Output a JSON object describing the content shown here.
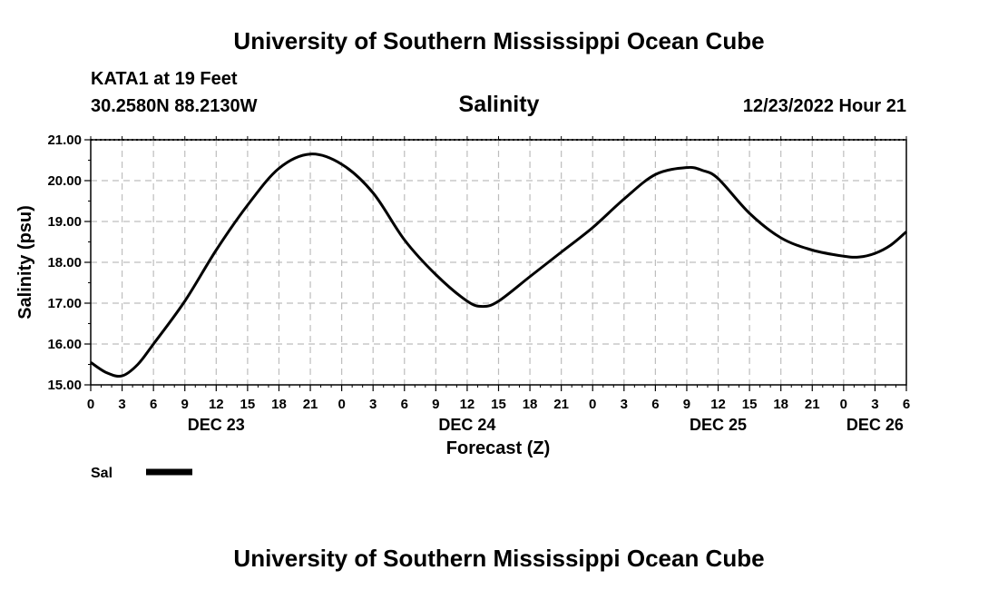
{
  "header": {
    "title": "University of Southern Mississippi Ocean Cube",
    "station": "KATA1 at 19 Feet",
    "coords": "30.2580N  88.2130W",
    "timestamp": "12/23/2022 Hour 21"
  },
  "footer": {
    "title": "University of Southern Mississippi Ocean Cube"
  },
  "chart_data": {
    "type": "line",
    "title": "Salinity",
    "xlabel": "Forecast (Z)",
    "ylabel": "Salinity (psu)",
    "ylim": [
      15.0,
      21.0
    ],
    "yticks": [
      "15.00",
      "16.00",
      "17.00",
      "18.00",
      "19.00",
      "20.00",
      "21.00"
    ],
    "xlim_hours": [
      0,
      78
    ],
    "xticks": [
      "0",
      "3",
      "6",
      "9",
      "12",
      "15",
      "18",
      "21",
      "0",
      "3",
      "6",
      "9",
      "12",
      "15",
      "18",
      "21",
      "0",
      "3",
      "6",
      "9",
      "12",
      "15",
      "18",
      "21",
      "0",
      "3",
      "6"
    ],
    "day_labels": [
      {
        "label": "DEC 23",
        "hour": 12
      },
      {
        "label": "DEC 24",
        "hour": 36
      },
      {
        "label": "DEC 25",
        "hour": 60
      },
      {
        "label": "DEC 26",
        "hour": 75
      }
    ],
    "grid": true,
    "legend": "bottom-left",
    "series": [
      {
        "name": "Sal",
        "color": "#000000",
        "x": [
          0,
          1.5,
          3,
          4.5,
          6,
          9,
          12,
          15,
          18,
          21,
          24,
          27,
          30,
          33,
          36,
          37.5,
          39,
          42,
          45,
          48,
          51,
          54,
          57,
          58.5,
          60,
          63,
          66,
          69,
          72,
          73.5,
          75,
          76.5,
          78
        ],
        "y": [
          15.55,
          15.3,
          15.22,
          15.5,
          16.0,
          17.05,
          18.3,
          19.4,
          20.3,
          20.65,
          20.4,
          19.7,
          18.55,
          17.7,
          17.05,
          16.92,
          17.05,
          17.65,
          18.25,
          18.85,
          19.55,
          20.15,
          20.32,
          20.25,
          20.05,
          19.2,
          18.6,
          18.3,
          18.15,
          18.13,
          18.22,
          18.42,
          18.75
        ]
      }
    ]
  }
}
